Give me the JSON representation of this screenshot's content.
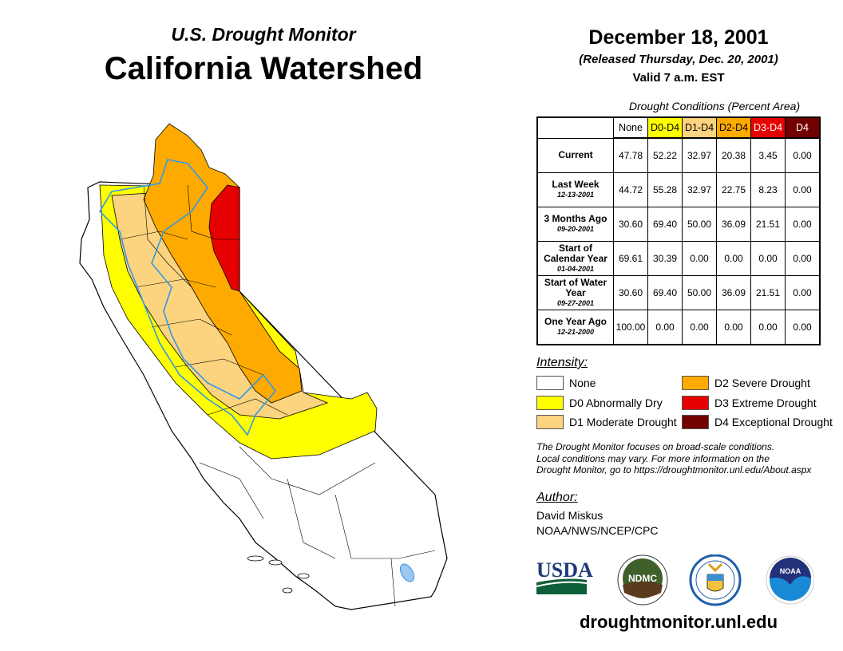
{
  "header": {
    "subtitle": "U.S. Drought Monitor",
    "title": "California Watershed",
    "date": "December 18, 2001",
    "released": "(Released Thursday, Dec. 20, 2001)",
    "valid": "Valid 7 a.m. EST"
  },
  "table": {
    "caption": "Drought Conditions (Percent Area)",
    "columns": [
      {
        "label": "None",
        "bg": "#ffffff",
        "fg": "#000000"
      },
      {
        "label": "D0-D4",
        "bg": "#ffff00",
        "fg": "#000000"
      },
      {
        "label": "D1-D4",
        "bg": "#fcd37f",
        "fg": "#000000"
      },
      {
        "label": "D2-D4",
        "bg": "#ffaa00",
        "fg": "#000000"
      },
      {
        "label": "D3-D4",
        "bg": "#e60000",
        "fg": "#ffffff"
      },
      {
        "label": "D4",
        "bg": "#730000",
        "fg": "#ffffff"
      }
    ],
    "rows": [
      {
        "label": "Current",
        "date": "",
        "values": [
          "47.78",
          "52.22",
          "32.97",
          "20.38",
          "3.45",
          "0.00"
        ]
      },
      {
        "label": "Last Week",
        "date": "12-13-2001",
        "values": [
          "44.72",
          "55.28",
          "32.97",
          "22.75",
          "8.23",
          "0.00"
        ]
      },
      {
        "label": "3 Months Ago",
        "date": "09-20-2001",
        "values": [
          "30.60",
          "69.40",
          "50.00",
          "36.09",
          "21.51",
          "0.00"
        ]
      },
      {
        "label": "Start of Calendar Year",
        "date": "01-04-2001",
        "values": [
          "69.61",
          "30.39",
          "0.00",
          "0.00",
          "0.00",
          "0.00"
        ]
      },
      {
        "label": "Start of Water Year",
        "date": "09-27-2001",
        "values": [
          "30.60",
          "69.40",
          "50.00",
          "36.09",
          "21.51",
          "0.00"
        ]
      },
      {
        "label": "One Year Ago",
        "date": "12-21-2000",
        "values": [
          "100.00",
          "0.00",
          "0.00",
          "0.00",
          "0.00",
          "0.00"
        ]
      }
    ]
  },
  "legend": {
    "title": "Intensity:",
    "items": [
      {
        "label": "None",
        "color": "#ffffff"
      },
      {
        "label": "D0 Abnormally Dry",
        "color": "#ffff00"
      },
      {
        "label": "D1 Moderate Drought",
        "color": "#fcd37f"
      },
      {
        "label": "D2 Severe Drought",
        "color": "#ffaa00"
      },
      {
        "label": "D3 Extreme Drought",
        "color": "#e60000"
      },
      {
        "label": "D4 Exceptional Drought",
        "color": "#730000"
      }
    ]
  },
  "note": [
    "The Drought Monitor focuses on broad-scale conditions.",
    "Local conditions may vary. For more information on the",
    "Drought Monitor, go to https://droughtmonitor.unl.edu/About.aspx"
  ],
  "author": {
    "label": "Author:",
    "name": "David Miskus",
    "org": "NOAA/NWS/NCEP/CPC"
  },
  "logos": {
    "usda": "USDA",
    "ndmc": "NDMC",
    "noaa": "NOAA"
  },
  "footer": {
    "url": "droughtmonitor.unl.edu"
  }
}
